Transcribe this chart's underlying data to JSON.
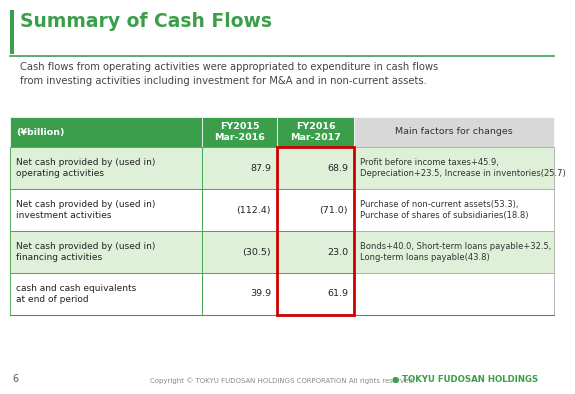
{
  "title": "Summary of Cash Flows",
  "subtitle": "Cash flows from operating activities were appropriated to expenditure in cash flows\nfrom investing activities including investment for M&A and in non-current assets.",
  "header_col0": "(¥billion)",
  "header_col1": "FY2015\nMar-2016",
  "header_col2": "FY2016\nMar-2017",
  "header_col3": "Main factors for changes",
  "rows": [
    {
      "label": "Net cash provided by (used in)\noperating activities",
      "val1": "87.9",
      "val2": "68.9",
      "factors": "Profit before income taxes+45.9,\nDepreciation+23.5, Increase in inventories(25.7)",
      "shaded": true
    },
    {
      "label": "Net cash provided by (used in)\ninvestment activities",
      "val1": "(112.4)",
      "val2": "(71.0)",
      "factors": "Purchase of non-current assets(53.3),\nPurchase of shares of subsidiaries(18.8)",
      "shaded": false
    },
    {
      "label": "Net cash provided by (used in)\nfinancing activities",
      "val1": "(30.5)",
      "val2": "23.0",
      "factors": "Bonds+40.0, Short-term loans payable+32.5,\nLong-term loans payable(43.8)",
      "shaded": true
    },
    {
      "label": "cash and cash equivalents\nat end of period",
      "val1": "39.9",
      "val2": "61.9",
      "factors": "",
      "shaded": false
    }
  ],
  "header_bg": "#3a9e4a",
  "header_text_color": "#ffffff",
  "shaded_row_bg": "#dff0d8",
  "unshaded_row_bg": "#ffffff",
  "table_border_color": "#3a9e4a",
  "factors_col_border": "#aaaaaa",
  "red_border_color": "#cc0000",
  "title_color": "#3a9e4a",
  "subtitle_color": "#444444",
  "body_text_color": "#222222",
  "factor_text_color": "#333333",
  "footer_text": "Copyright © TOKYU FUDOSAN HOLDINGS CORPORATION All rights reserved.",
  "footer_logo": "TOKYU FUDOSAN HOLDINGS",
  "page_num": "6",
  "green_bar_color": "#3a9e4a",
  "factors_header_bg": "#d8d8d8"
}
